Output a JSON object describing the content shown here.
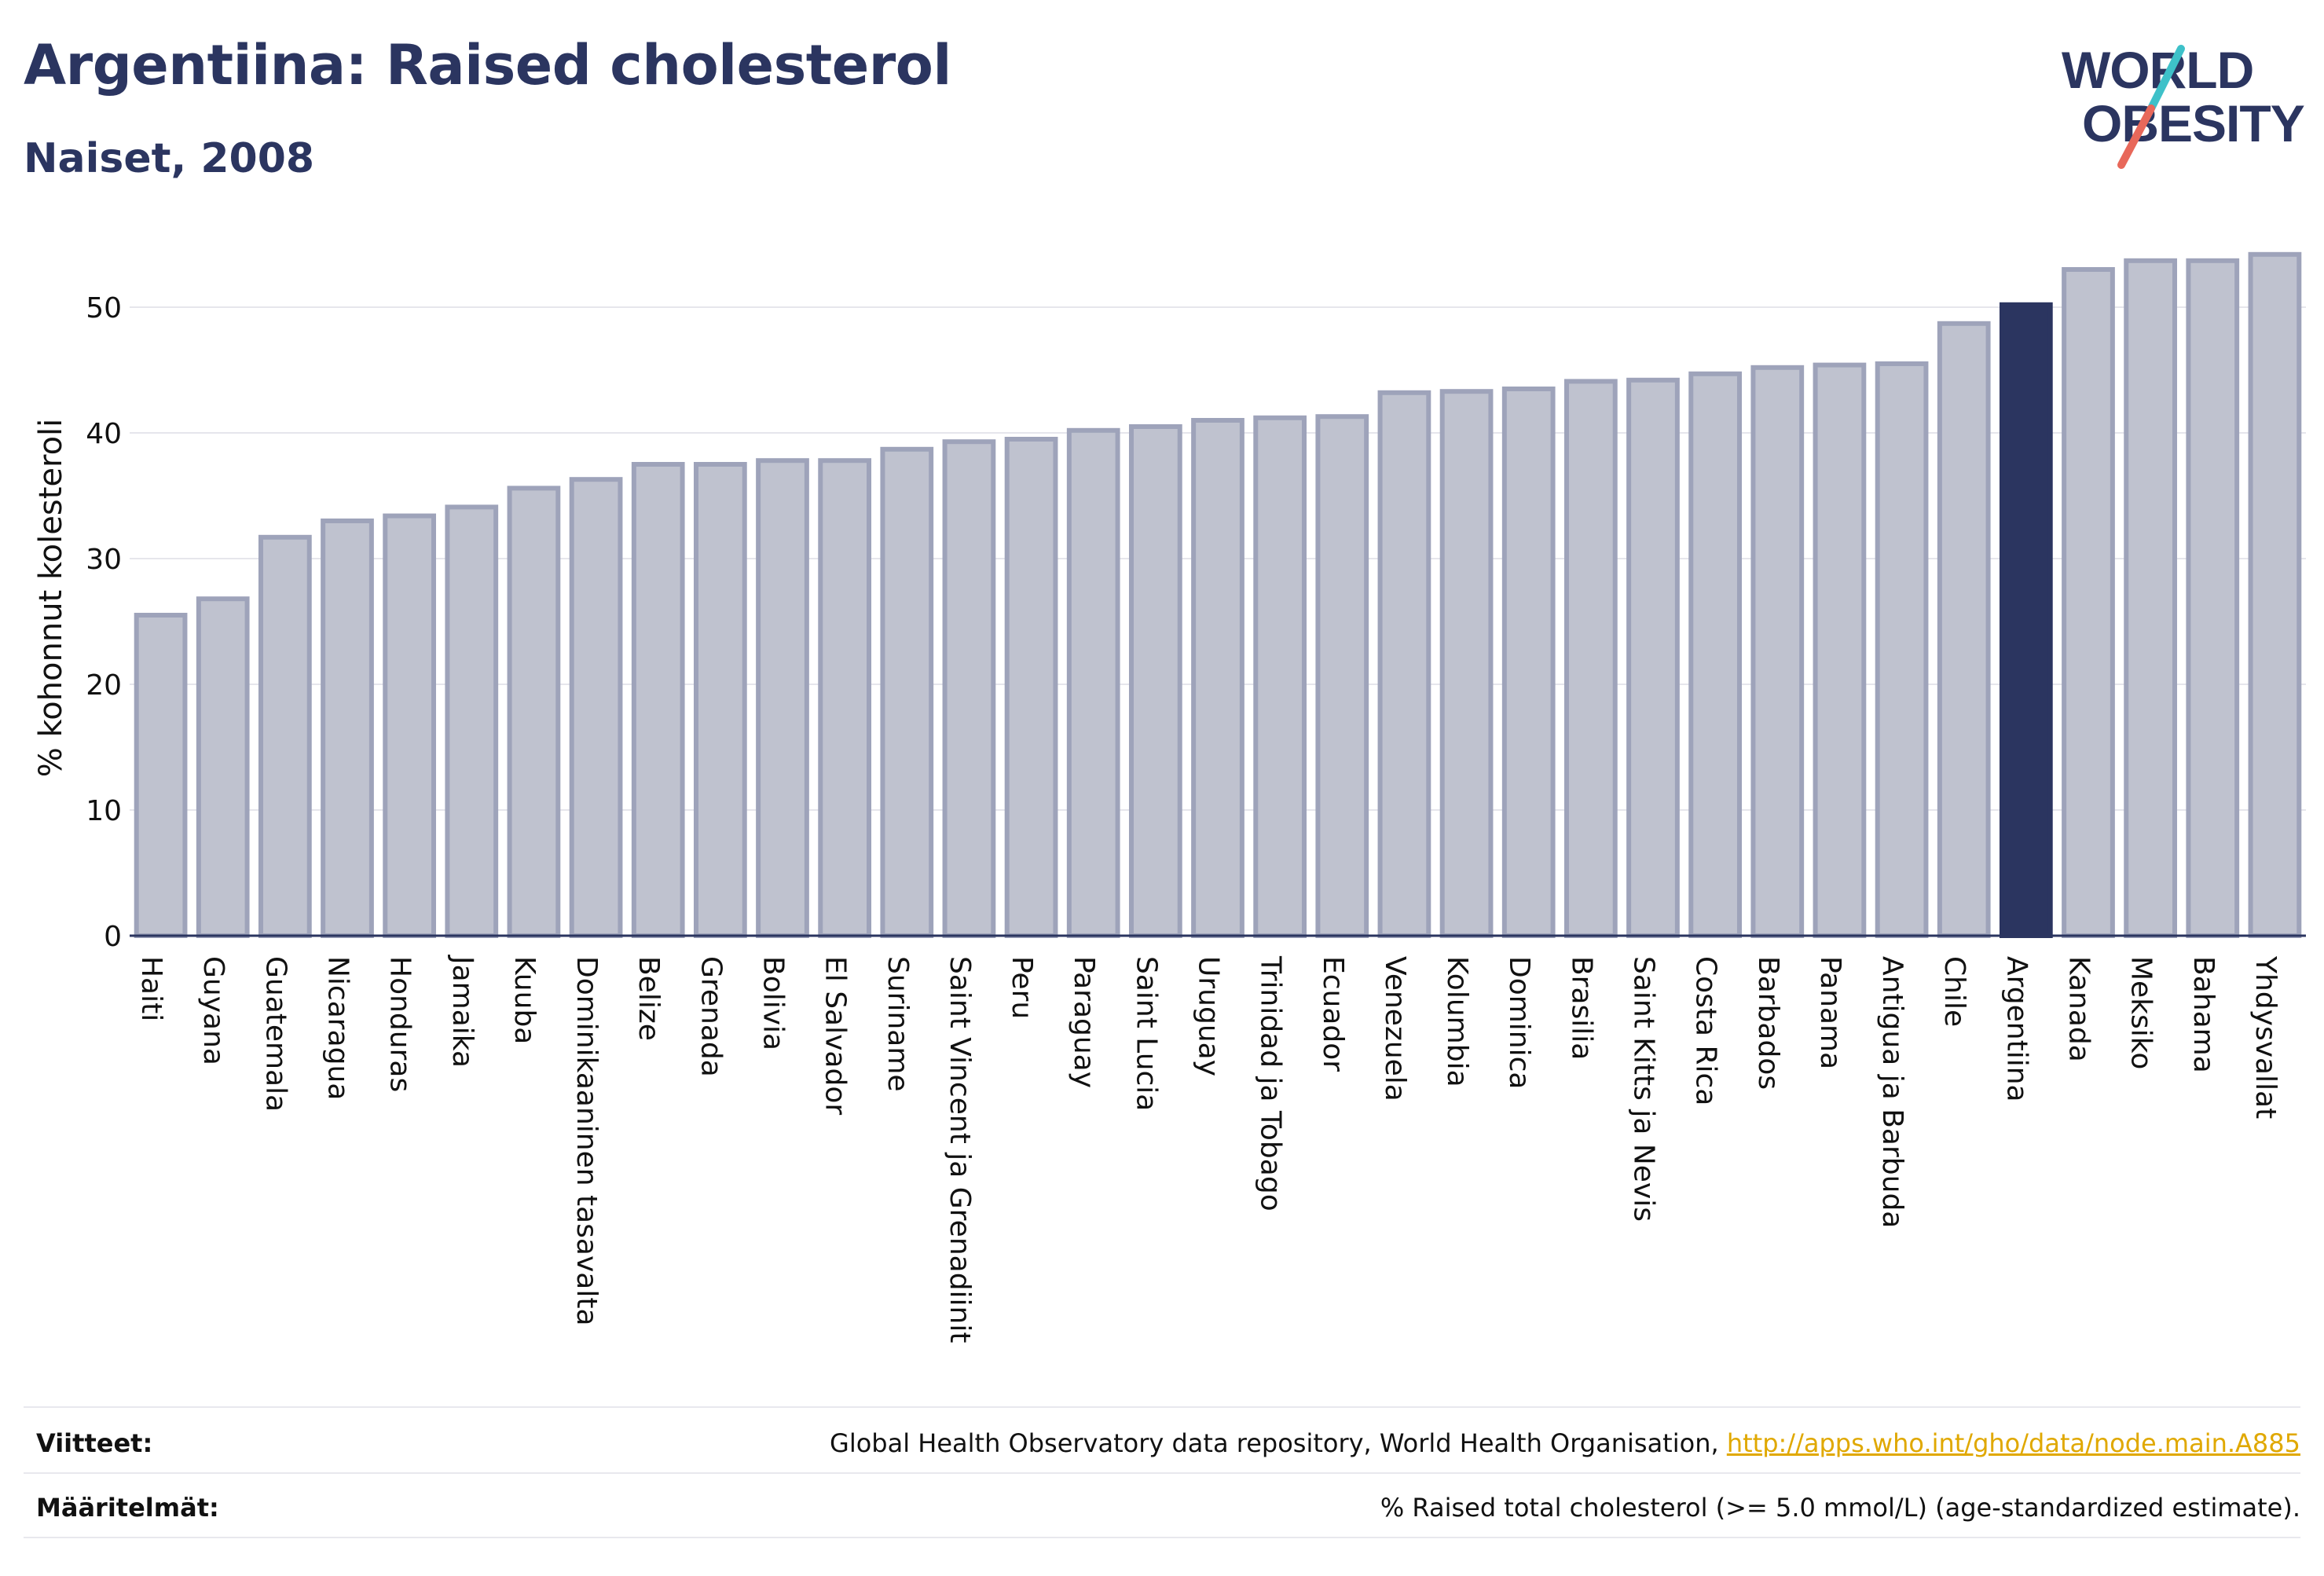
{
  "header": {
    "title": "Argentiina: Raised cholesterol",
    "subtitle": "Naiset, 2008"
  },
  "logo": {
    "line1": "WORLD",
    "line2": "OBESITY",
    "slash_colors": [
      "#3ec1c9",
      "#e8685a"
    ]
  },
  "chart_data": {
    "type": "bar",
    "ylabel": "% kohonnut kolesteroli",
    "xlabel": "",
    "ylim": [
      0,
      55
    ],
    "yticks": [
      0,
      10,
      20,
      30,
      40,
      50
    ],
    "grid": true,
    "highlight": "Argentiina",
    "colors": {
      "bar": "#bfc2cf",
      "bar_border": "#9ea3ba",
      "highlight": "#2b3560",
      "grid": "#e6e6ec",
      "axis": "#2b3560"
    },
    "categories": [
      "Haiti",
      "Guyana",
      "Guatemala",
      "Nicaragua",
      "Honduras",
      "Jamaika",
      "Kuuba",
      "Dominikaaninen tasavalta",
      "Belize",
      "Grenada",
      "Bolivia",
      "El Salvador",
      "Suriname",
      "Saint Vincent ja Grenadiinit",
      "Peru",
      "Paraguay",
      "Saint Lucia",
      "Uruguay",
      "Trinidad ja Tobago",
      "Ecuador",
      "Venezuela",
      "Kolumbia",
      "Dominica",
      "Brasilia",
      "Saint Kitts ja Nevis",
      "Costa Rica",
      "Barbados",
      "Panama",
      "Antigua ja Barbuda",
      "Chile",
      "Argentiina",
      "Kanada",
      "Meksiko",
      "Bahama",
      "Yhdysvallat"
    ],
    "values": [
      25.5,
      26.8,
      31.7,
      33.0,
      33.4,
      34.1,
      35.6,
      36.3,
      37.5,
      37.5,
      37.8,
      37.8,
      38.7,
      39.3,
      39.5,
      40.2,
      40.5,
      41.0,
      41.2,
      41.3,
      43.2,
      43.3,
      43.5,
      44.1,
      44.2,
      44.7,
      45.2,
      45.4,
      45.5,
      48.7,
      50.2,
      53.0,
      53.7,
      53.7,
      54.2
    ]
  },
  "footer": {
    "refs_label": "Viitteet:",
    "refs_text": "Global Health Observatory data repository, World Health Organisation, ",
    "refs_link": "http://apps.who.int/gho/data/node.main.A885",
    "defs_label": "Määritelmät:",
    "defs_text": "% Raised total cholesterol (>= 5.0 mmol/L) (age-standardized estimate)."
  }
}
